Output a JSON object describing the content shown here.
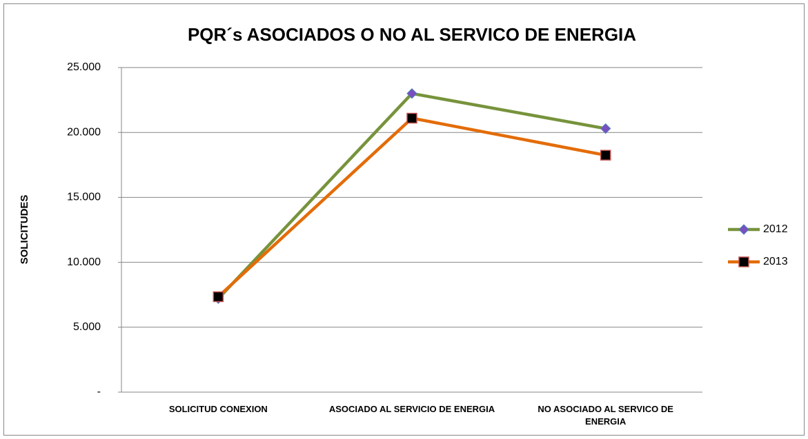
{
  "chart_data": {
    "type": "line",
    "title": "PQR´s ASOCIADOS O NO AL SERVICO DE ENERGIA",
    "y_label": "SOLICITUDES",
    "categories": [
      "SOLICITUD CONEXION",
      "ASOCIADO AL SERVICIO DE ENERGIA",
      "NO ASOCIADO AL SERVICO DE ENERGIA"
    ],
    "series": [
      {
        "name": "2012",
        "color": "#77933c",
        "marker_color": "#7a4fbf",
        "marker_edge": "#4f81bd",
        "marker": "diamond",
        "values": [
          7200,
          23000,
          20300
        ]
      },
      {
        "name": "2013",
        "color": "#e36c09",
        "marker_color": "#000000",
        "marker_edge": "#c0504d",
        "marker": "square",
        "values": [
          7350,
          21100,
          18250
        ]
      }
    ],
    "ylim": [
      0,
      25000
    ],
    "yticks": [
      {
        "value": 0,
        "label": "-"
      },
      {
        "value": 5000,
        "label": "5.000"
      },
      {
        "value": 10000,
        "label": "10.000"
      },
      {
        "value": 15000,
        "label": "15.000"
      },
      {
        "value": 20000,
        "label": "20.000"
      },
      {
        "value": 25000,
        "label": "25.000"
      }
    ],
    "grid": true,
    "legend": "right"
  }
}
